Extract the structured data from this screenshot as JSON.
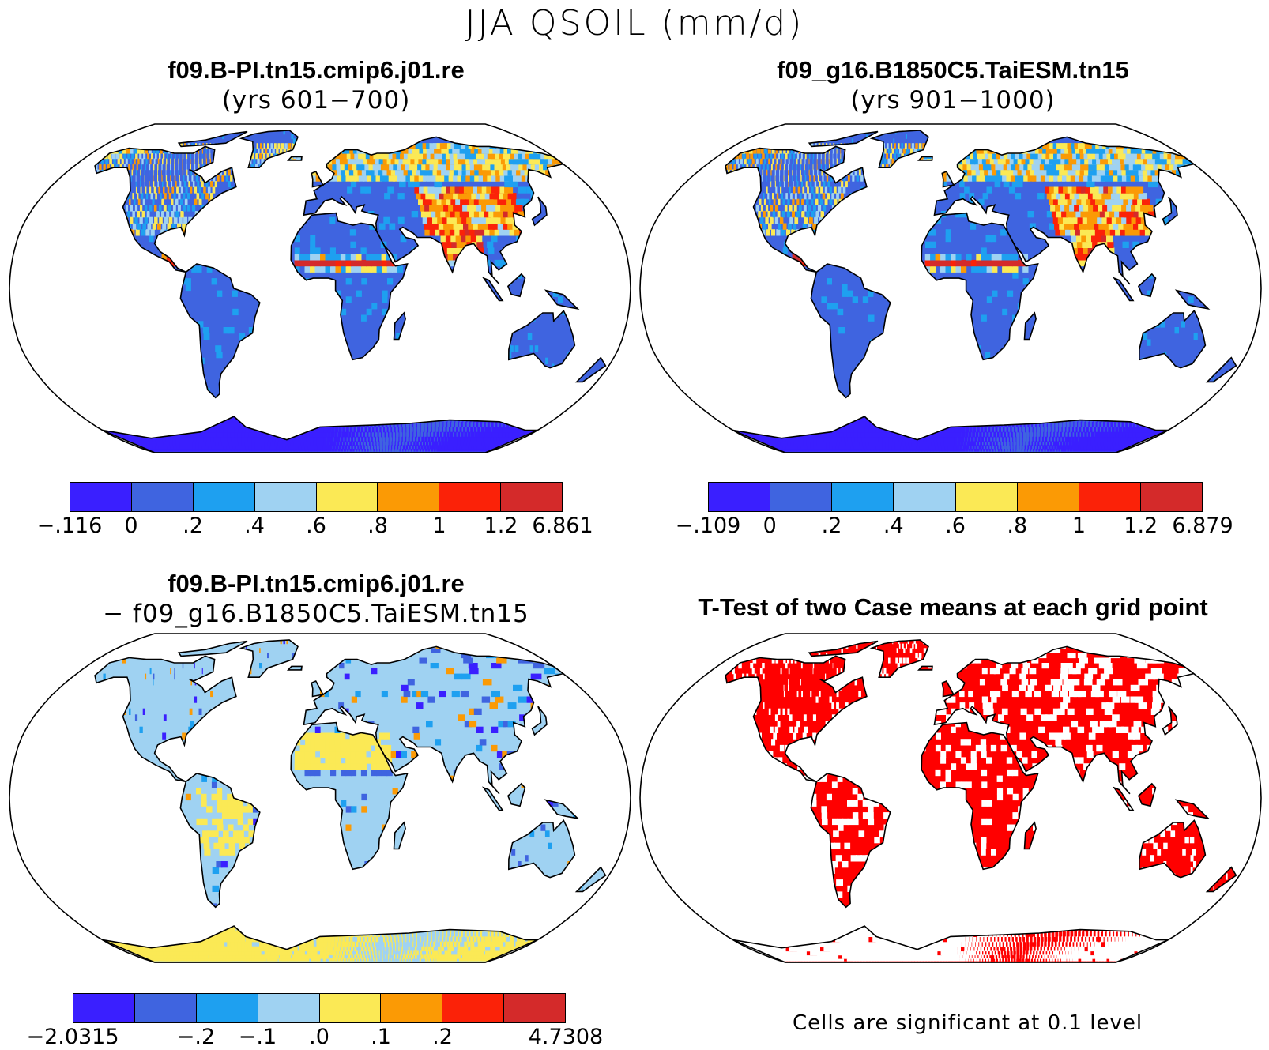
{
  "title": "JJA QSOIL (mm/d)",
  "colors": {
    "c1": "#3a1fff",
    "c2": "#3f64e0",
    "c3": "#1ea0f0",
    "c4": "#9fd2f2",
    "c5": "#fbe955",
    "c6": "#fb9a05",
    "c7": "#fb2208",
    "c8": "#d42a2a",
    "sig": "#ff0000",
    "land_coast": "#000000"
  },
  "panels": {
    "top_left": {
      "title": "f09.B-PI.tn15.cmip6.j01.re",
      "subtitle": "(yrs 601−700)",
      "colorbar_labels": [
        "−.116",
        "0",
        ".2",
        ".4",
        ".6",
        ".8",
        "1",
        "1.2",
        "6.861"
      ]
    },
    "top_right": {
      "title": "f09_g16.B1850C5.TaiESM.tn15",
      "subtitle": "(yrs 901−1000)",
      "colorbar_labels": [
        "−.109",
        "0",
        ".2",
        ".4",
        ".6",
        ".8",
        "1",
        "1.2",
        "6.879"
      ]
    },
    "bottom_left": {
      "title": "f09.B-PI.tn15.cmip6.j01.re",
      "subtitle": "− f09_g16.B1850C5.TaiESM.tn15",
      "colorbar_labels": [
        "−2.0315",
        "−.2",
        "−.1",
        ".0",
        ".1",
        ".2",
        "4.7308"
      ]
    },
    "bottom_right": {
      "title": "T-Test of two Case means at each grid point",
      "note": "Cells are significant at 0.1 level"
    }
  }
}
